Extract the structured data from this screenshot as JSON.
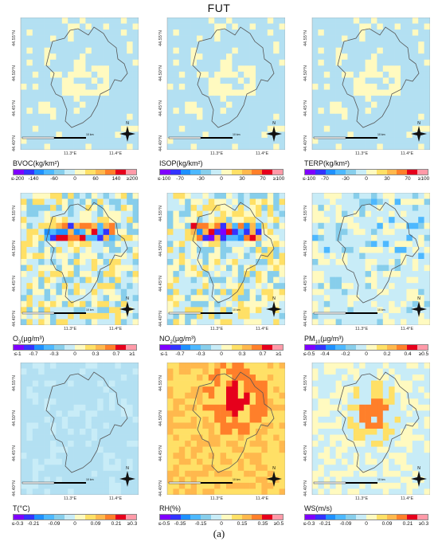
{
  "title": "FUT",
  "caption": "(a)",
  "lat_labels": [
    "44.55°N",
    "44.50°N",
    "44.45°N",
    "44.40°N"
  ],
  "lon_labels": [
    "11.3°E",
    "11.4°E"
  ],
  "scale_label": "10 km",
  "north_label": "N",
  "colors": {
    "palette": [
      "#7f00ff",
      "#3333ff",
      "#1e90ff",
      "#4db8ff",
      "#87ceeb",
      "#c8ecf7",
      "#fffac0",
      "#ffe066",
      "#ffb84d",
      "#ff7f2a",
      "#e6001c",
      "#ff9aa8"
    ],
    "background_cell": "#b3e0f2",
    "boundary": "#555555"
  },
  "panels": [
    {
      "name": "BVOC",
      "unit": "(kg/km²)",
      "ticks": [
        "≤-200",
        "-140",
        "-60",
        "0",
        "60",
        "140",
        "≥200"
      ],
      "pattern": "bvoc"
    },
    {
      "name": "ISOP",
      "unit": "(kg/km²)",
      "ticks": [
        "≤-100",
        "-70",
        "-30",
        "0",
        "30",
        "70",
        "≥100"
      ],
      "pattern": "isop"
    },
    {
      "name": "TERP",
      "unit": "(kg/km²)",
      "ticks": [
        "≤-100",
        "-70",
        "-30",
        "0",
        "30",
        "70",
        "≥100"
      ],
      "pattern": "terp"
    },
    {
      "name": "O",
      "sub": "3",
      "unit": "(µg/m³)",
      "ticks": [
        "≤-1",
        "-0.7",
        "-0.3",
        "0",
        "0.3",
        "0.7",
        "≥1"
      ],
      "pattern": "o3"
    },
    {
      "name": "NO",
      "sub": "2",
      "unit": "(µg/m³)",
      "ticks": [
        "≤-1",
        "-0.7",
        "-0.3",
        "0",
        "0.3",
        "0.7",
        "≥1"
      ],
      "pattern": "no2"
    },
    {
      "name": "PM",
      "sub": "10",
      "unit": "(µg/m³)",
      "ticks": [
        "≤-0.5",
        "-0.4",
        "-0.2",
        "0",
        "0.2",
        "0.4",
        "≥0.5"
      ],
      "pattern": "pm10"
    },
    {
      "name": "T",
      "unit": "(°C)",
      "ticks": [
        "≤-0.3",
        "-0.21",
        "-0.09",
        "0",
        "0.09",
        "0.21",
        "≥0.3"
      ],
      "pattern": "t"
    },
    {
      "name": "RH",
      "unit": "(%)",
      "ticks": [
        "≤-0.5",
        "-0.35",
        "-0.15",
        "0",
        "0.15",
        "0.35",
        "≥0.5"
      ],
      "pattern": "rh"
    },
    {
      "name": "WS",
      "unit": "(m/s)",
      "ticks": [
        "≤-0.3",
        "-0.21",
        "-0.09",
        "0",
        "0.09",
        "0.21",
        "≥0.3"
      ],
      "pattern": "ws"
    }
  ]
}
